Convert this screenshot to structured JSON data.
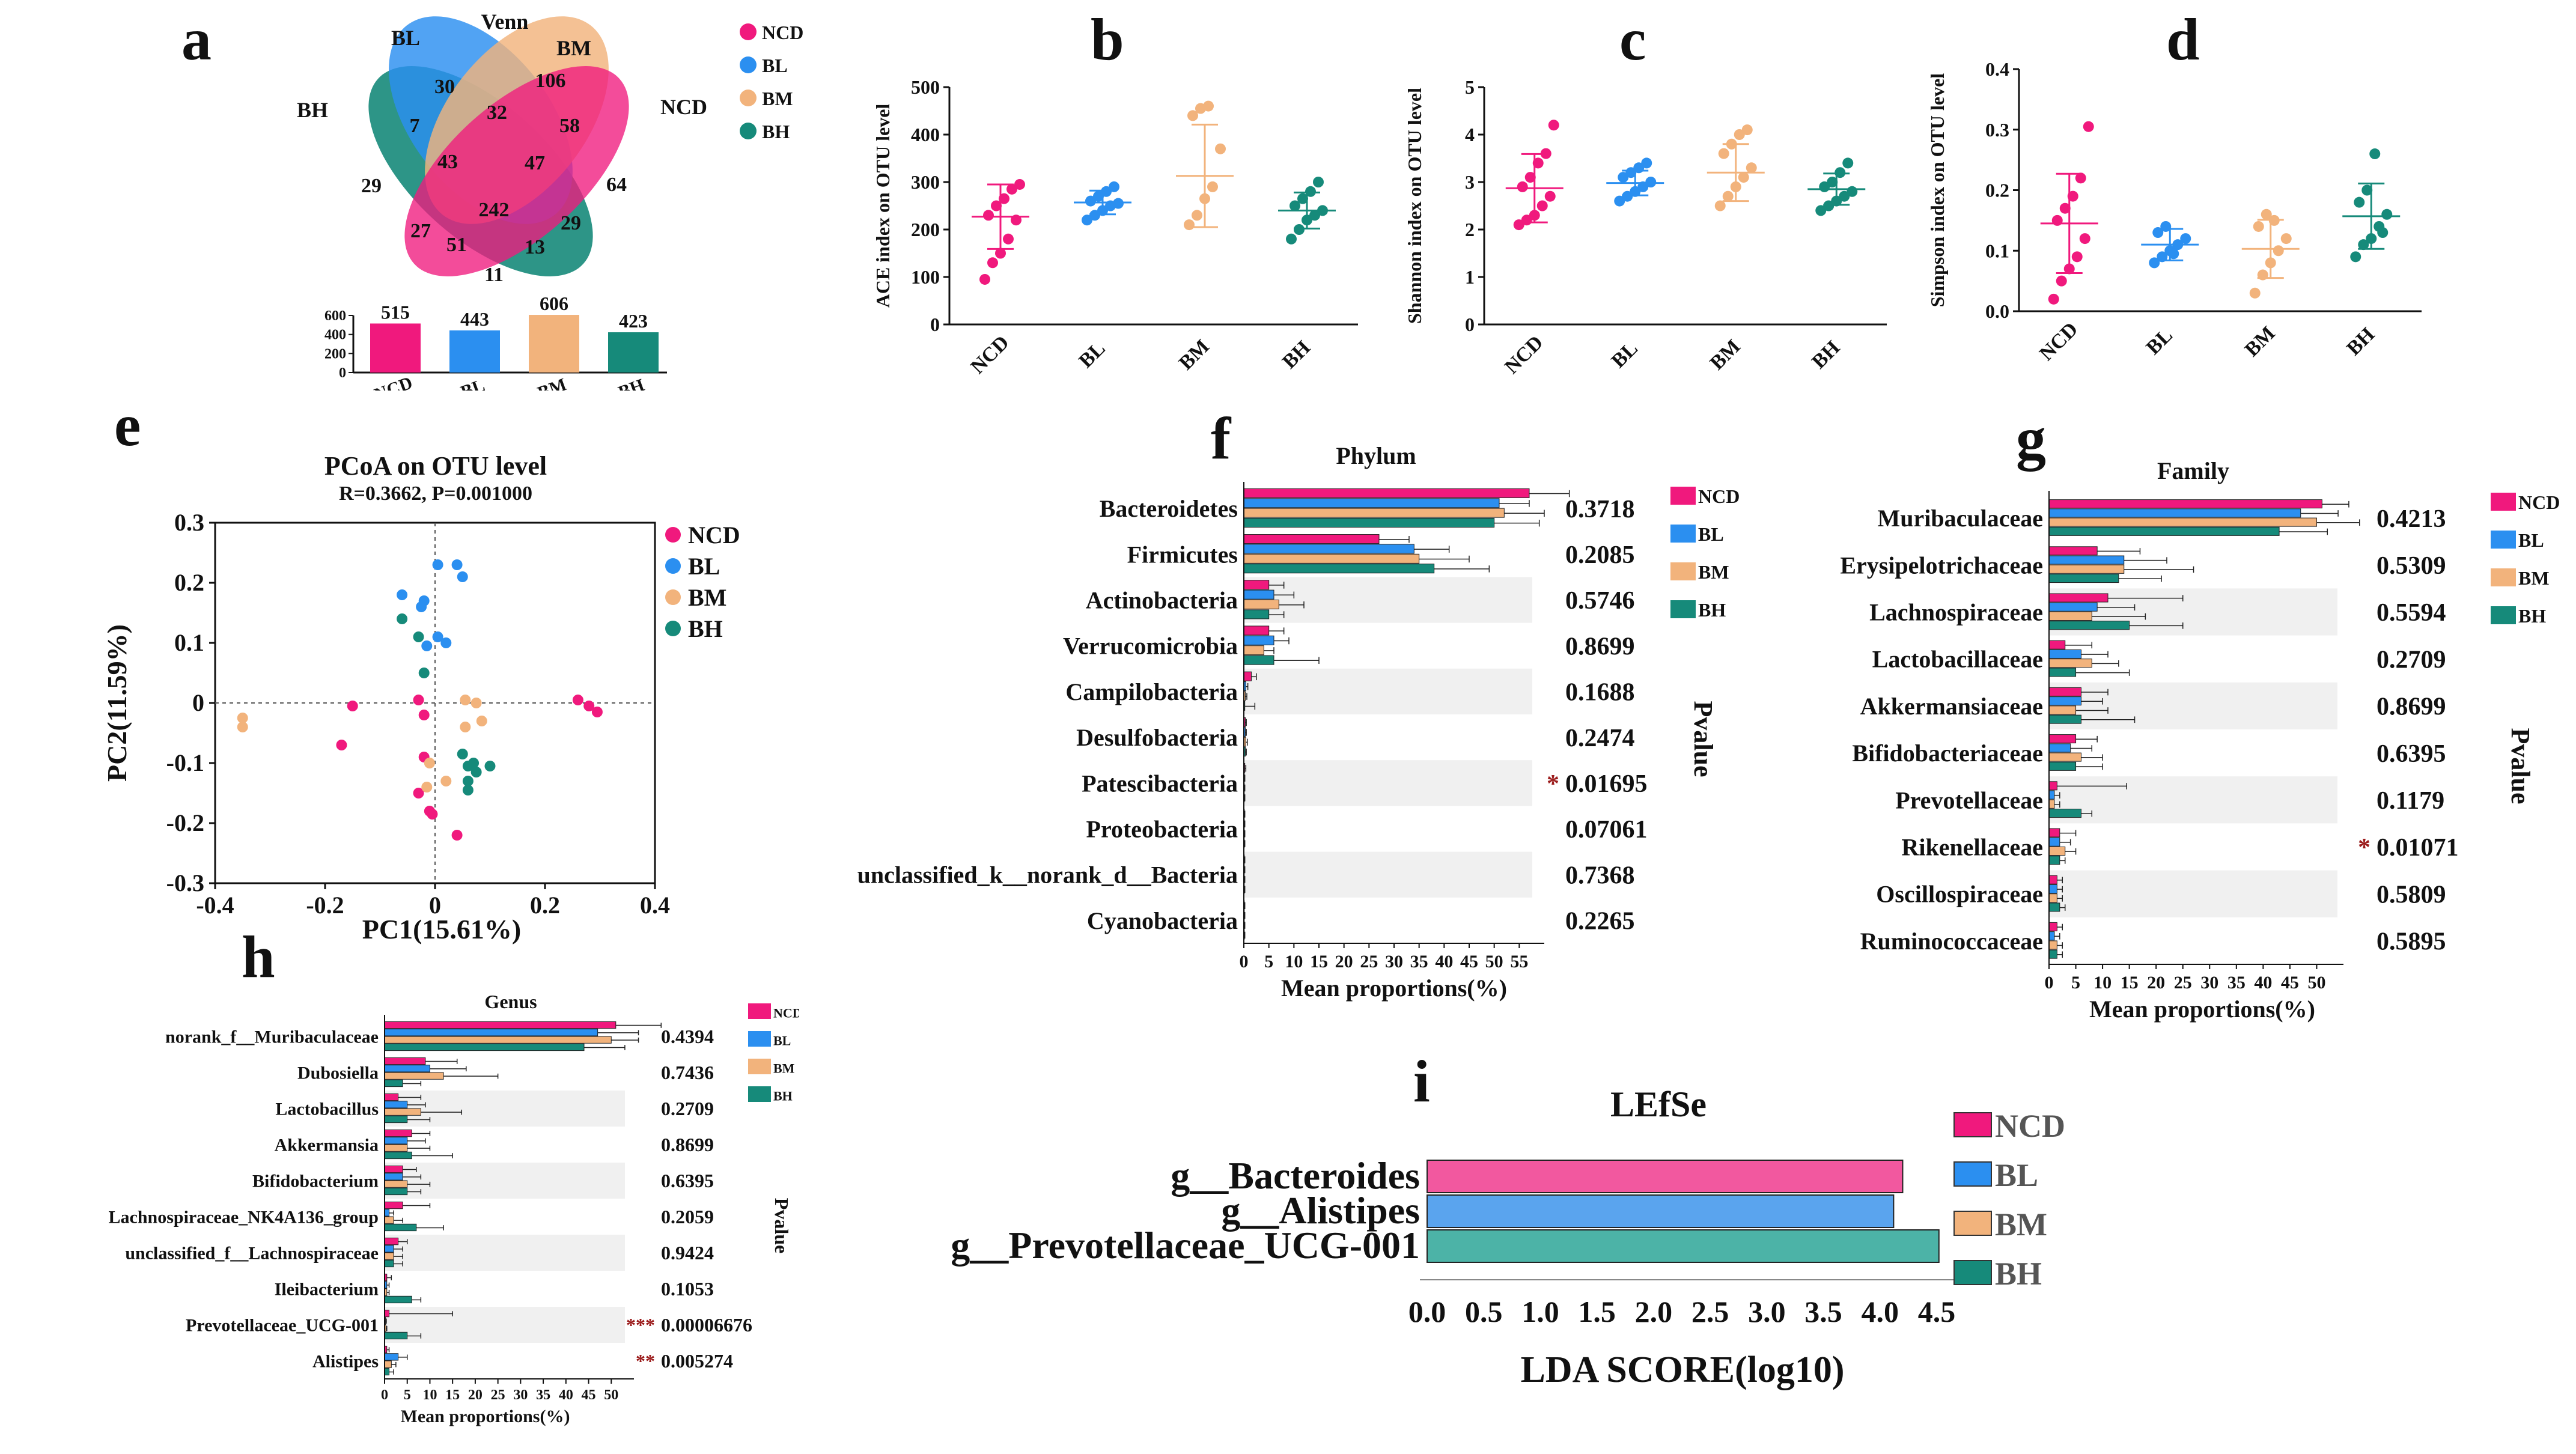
{
  "colors": {
    "NCD": "#f0197d",
    "BL": "#2b8ff0",
    "BM": "#f2b37c",
    "BH": "#168a7a",
    "bandBg": "#f0f0f0",
    "sig": "#9b1b1b"
  },
  "groups": [
    "NCD",
    "BL",
    "BM",
    "BH"
  ],
  "panel_a": {
    "label": "a",
    "title": "Venn",
    "set_labels": {
      "BL": "BL",
      "BM": "BM",
      "BH": "BH",
      "NCD": "NCD"
    },
    "legend": [
      "NCD",
      "BL",
      "BM",
      "BH"
    ],
    "counts": {
      "bl_only": "30",
      "bm_only": "106",
      "bh_only": "29",
      "ncd_only": "64",
      "bl_bm": "32",
      "bh_bl": "7",
      "bm_ncd": "58",
      "bh_bl_bm": "43",
      "bl_bm_ncd": "47",
      "bh_bm": "27",
      "all": "242",
      "bh_bl_ncd": "29",
      "bh_bm_ncd": "51",
      "bh_ncd_a": "13",
      "bh_ncd_b": "11"
    },
    "bar_chart": {
      "type": "bar",
      "categories": [
        "NCD",
        "BL",
        "BM",
        "BH"
      ],
      "values": [
        515,
        443,
        606,
        423
      ],
      "value_labels": [
        "515",
        "443",
        "606",
        "423"
      ],
      "yticks": [
        "600",
        "400",
        "200",
        "0"
      ],
      "ylim": [
        0,
        600
      ]
    }
  },
  "chart_data": [
    {
      "id": "b",
      "label": "b",
      "type": "scatter",
      "ylabel": "ACE index on OTU level",
      "ylim": [
        0,
        500
      ],
      "yticks": [
        "0",
        "100",
        "200",
        "300",
        "400",
        "500"
      ],
      "categories": [
        "NCD",
        "BL",
        "BM",
        "BH"
      ],
      "points": [
        [
          95,
          130,
          150,
          180,
          220,
          230,
          250,
          265,
          285,
          295
        ],
        [
          220,
          230,
          240,
          250,
          255,
          260,
          270,
          280,
          290
        ],
        [
          210,
          230,
          265,
          290,
          370,
          440,
          455,
          460
        ],
        [
          180,
          200,
          220,
          230,
          240,
          250,
          265,
          280,
          300
        ]
      ],
      "mean": [
        227,
        257,
        313,
        240
      ],
      "sd": [
        68,
        25,
        108,
        38
      ]
    },
    {
      "id": "c",
      "label": "c",
      "type": "scatter",
      "ylabel": "Shannon index on OTU level",
      "ylim": [
        0,
        5
      ],
      "yticks": [
        "0",
        "1",
        "2",
        "3",
        "4",
        "5"
      ],
      "categories": [
        "NCD",
        "BL",
        "BM",
        "BH"
      ],
      "points": [
        [
          2.1,
          2.2,
          2.3,
          2.5,
          2.7,
          2.9,
          3.1,
          3.4,
          3.6,
          4.2
        ],
        [
          2.6,
          2.7,
          2.8,
          2.9,
          3.0,
          3.1,
          3.2,
          3.3,
          3.4
        ],
        [
          2.5,
          2.7,
          2.9,
          3.1,
          3.3,
          3.6,
          3.8,
          4.0,
          4.1
        ],
        [
          2.4,
          2.5,
          2.6,
          2.7,
          2.8,
          2.9,
          3.0,
          3.2,
          3.4
        ]
      ],
      "mean": [
        2.87,
        2.98,
        3.2,
        2.85
      ],
      "sd": [
        0.72,
        0.26,
        0.6,
        0.33
      ]
    },
    {
      "id": "d",
      "label": "d",
      "type": "scatter",
      "ylabel": "Simpson index on OTU level",
      "ylim": [
        0,
        0.4
      ],
      "yticks": [
        "0.0",
        "0.1",
        "0.2",
        "0.3",
        "0.4"
      ],
      "categories": [
        "NCD",
        "BL",
        "BM",
        "BH"
      ],
      "points": [
        [
          0.02,
          0.05,
          0.07,
          0.09,
          0.12,
          0.15,
          0.17,
          0.19,
          0.22,
          0.305
        ],
        [
          0.08,
          0.09,
          0.1,
          0.11,
          0.12,
          0.13,
          0.14,
          0.095
        ],
        [
          0.03,
          0.06,
          0.08,
          0.1,
          0.12,
          0.14,
          0.16,
          0.15
        ],
        [
          0.09,
          0.11,
          0.12,
          0.14,
          0.16,
          0.18,
          0.2,
          0.26,
          0.13
        ]
      ],
      "mean": [
        0.145,
        0.11,
        0.103,
        0.157
      ],
      "sd": [
        0.082,
        0.026,
        0.048,
        0.054
      ]
    },
    {
      "id": "e",
      "label": "e",
      "type": "scatter",
      "title": "PCoA on OTU level",
      "subtitle": "R=0.3662, P=0.001000",
      "xlabel": "PC1(15.61%)",
      "ylabel": "PC2(11.59%)",
      "xlim": [
        -0.4,
        0.4
      ],
      "ylim": [
        -0.3,
        0.3
      ],
      "xticks": [
        "-0.4",
        "-0.2",
        "0",
        "0.2",
        "0.4"
      ],
      "yticks": [
        "-0.3",
        "-0.2",
        "-0.1",
        "0",
        "0.1",
        "0.2",
        "0.3"
      ],
      "series": [
        {
          "name": "NCD",
          "points": [
            [
              -0.17,
              -0.07
            ],
            [
              -0.15,
              -0.005
            ],
            [
              -0.03,
              0.005
            ],
            [
              -0.02,
              -0.02
            ],
            [
              0.26,
              0.005
            ],
            [
              0.28,
              -0.005
            ],
            [
              0.295,
              -0.015
            ],
            [
              -0.02,
              -0.09
            ],
            [
              -0.03,
              -0.15
            ],
            [
              -0.01,
              -0.18
            ],
            [
              0.04,
              -0.22
            ],
            [
              -0.005,
              -0.185
            ]
          ]
        },
        {
          "name": "BL",
          "points": [
            [
              0.005,
              0.23
            ],
            [
              0.04,
              0.23
            ],
            [
              0.05,
              0.21
            ],
            [
              -0.06,
              0.18
            ],
            [
              -0.02,
              0.17
            ],
            [
              -0.025,
              0.16
            ],
            [
              0.005,
              0.11
            ],
            [
              0.02,
              0.1
            ],
            [
              -0.015,
              0.095
            ]
          ]
        },
        {
          "name": "BM",
          "points": [
            [
              -0.35,
              -0.025
            ],
            [
              -0.35,
              -0.04
            ],
            [
              0.055,
              0.005
            ],
            [
              0.075,
              0.0
            ],
            [
              0.085,
              -0.03
            ],
            [
              -0.01,
              -0.1
            ],
            [
              -0.015,
              -0.14
            ],
            [
              0.02,
              -0.13
            ],
            [
              0.055,
              -0.04
            ]
          ]
        },
        {
          "name": "BH",
          "points": [
            [
              -0.06,
              0.14
            ],
            [
              -0.03,
              0.11
            ],
            [
              -0.02,
              0.05
            ],
            [
              0.06,
              -0.105
            ],
            [
              0.07,
              -0.1
            ],
            [
              0.1,
              -0.105
            ],
            [
              0.06,
              -0.13
            ],
            [
              0.075,
              -0.115
            ],
            [
              0.06,
              -0.145
            ],
            [
              0.05,
              -0.085
            ]
          ]
        }
      ]
    },
    {
      "id": "f",
      "label": "f",
      "type": "bar",
      "orientation": "horizontal",
      "title": "Phylum",
      "xlabel": "Mean proportions(%)",
      "pvalue_label": "Pvalue",
      "xlim": [
        0,
        60
      ],
      "xticks": [
        "0",
        "5",
        "10",
        "15",
        "20",
        "25",
        "30",
        "35",
        "40",
        "45",
        "50",
        "55"
      ],
      "categories": [
        "Bacteroidetes",
        "Firmicutes",
        "Actinobacteria",
        "Verrucomicrobia",
        "Campilobacteria",
        "Desulfobacteria",
        "Patescibacteria",
        "Proteobacteria",
        "unclassified_k__norank_d__Bacteria",
        "Cyanobacteria"
      ],
      "pvalues": [
        "0.3718",
        "0.2085",
        "0.5746",
        "0.8699",
        "0.1688",
        "0.2474",
        "0.01695",
        "0.07061",
        "0.7368",
        "0.2265"
      ],
      "sig": [
        "",
        "",
        "",
        "",
        "",
        "",
        "*",
        "",
        "",
        ""
      ],
      "series": [
        {
          "name": "NCD",
          "values": [
            57,
            27,
            5,
            5,
            1.5,
            0.3,
            0.2,
            0.1,
            0.1,
            0.1
          ],
          "err": [
            8,
            6,
            3,
            3,
            1,
            0.2,
            0.2,
            0.1,
            0.1,
            0.1
          ]
        },
        {
          "name": "BL",
          "values": [
            51,
            34,
            6,
            6,
            0.4,
            0.3,
            0.1,
            0.1,
            0.1,
            0.1
          ],
          "err": [
            6,
            7,
            4,
            3,
            0.4,
            0.2,
            0.1,
            0.1,
            0.1,
            0.1
          ]
        },
        {
          "name": "BM",
          "values": [
            52,
            35,
            7,
            4,
            0.3,
            0.4,
            0.1,
            0.1,
            0.1,
            0.1
          ],
          "err": [
            8,
            10,
            5,
            2,
            0.3,
            0.3,
            0.1,
            0.1,
            0.1,
            0.1
          ]
        },
        {
          "name": "BH",
          "values": [
            50,
            38,
            5,
            6,
            0.2,
            0.3,
            0.1,
            0.1,
            0.1,
            0.1
          ],
          "err": [
            9,
            11,
            3,
            9,
            2,
            0.2,
            0.1,
            0.1,
            0.1,
            0.1
          ]
        }
      ]
    },
    {
      "id": "g",
      "label": "g",
      "type": "bar",
      "orientation": "horizontal",
      "title": "Family",
      "xlabel": "Mean proportions(%)",
      "pvalue_label": "Pvalue",
      "xlim": [
        0,
        55
      ],
      "xticks": [
        "0",
        "5",
        "10",
        "15",
        "20",
        "25",
        "30",
        "35",
        "40",
        "45",
        "50"
      ],
      "categories": [
        "Muribaculaceae",
        "Erysipelotrichaceae",
        "Lachnospiraceae",
        "Lactobacillaceae",
        "Akkermansiaceae",
        "Bifidobacteriaceae",
        "Prevotellaceae",
        "Rikenellaceae",
        "Oscillospiraceae",
        "Ruminococcaceae"
      ],
      "pvalues": [
        "0.4213",
        "0.5309",
        "0.5594",
        "0.2709",
        "0.8699",
        "0.6395",
        "0.1179",
        "0.01071",
        "0.5809",
        "0.5895"
      ],
      "sig": [
        "",
        "",
        "",
        "",
        "",
        "",
        "",
        "*",
        "",
        ""
      ],
      "series": [
        {
          "name": "NCD",
          "values": [
            51,
            9,
            11,
            3,
            6,
            5,
            1.5,
            2,
            1.5,
            1.5
          ],
          "err": [
            5,
            8,
            14,
            5,
            5,
            4,
            13,
            3,
            1,
            1
          ]
        },
        {
          "name": "BL",
          "values": [
            47,
            14,
            9,
            6,
            6,
            4,
            1,
            2,
            1.5,
            1
          ],
          "err": [
            7,
            8,
            7,
            5,
            4,
            4,
            1,
            2,
            1,
            1
          ]
        },
        {
          "name": "BM",
          "values": [
            50,
            14,
            8,
            8,
            5,
            6,
            1,
            3,
            1.5,
            1.5
          ],
          "err": [
            8,
            13,
            10,
            5,
            6,
            4,
            1,
            2,
            1,
            1
          ]
        },
        {
          "name": "BH",
          "values": [
            43,
            13,
            15,
            5,
            6,
            5,
            6,
            2,
            2,
            1.5
          ],
          "err": [
            9,
            8,
            10,
            10,
            10,
            5,
            2,
            1,
            1,
            1
          ]
        }
      ]
    },
    {
      "id": "h",
      "label": "h",
      "type": "bar",
      "orientation": "horizontal",
      "title": "Genus",
      "xlabel": "Mean proportions(%)",
      "pvalue_label": "Pvalue",
      "xlim": [
        0,
        55
      ],
      "xticks": [
        "0",
        "5",
        "10",
        "15",
        "20",
        "25",
        "30",
        "35",
        "40",
        "45",
        "50"
      ],
      "categories": [
        "norank_f__Muribaculaceae",
        "Dubosiella",
        "Lactobacillus",
        "Akkermansia",
        "Bifidobacterium",
        "Lachnospiraceae_NK4A136_group",
        "unclassified_f__Lachnospiraceae",
        "Ileibacterium",
        "Prevotellaceae_UCG-001",
        "Alistipes"
      ],
      "pvalues": [
        "0.4394",
        "0.7436",
        "0.2709",
        "0.8699",
        "0.6395",
        "0.2059",
        "0.9424",
        "0.1053",
        "0.00006676",
        "0.005274"
      ],
      "sig": [
        "",
        "",
        "",
        "",
        "",
        "",
        "",
        "",
        "***",
        "**"
      ],
      "series": [
        {
          "name": "NCD",
          "values": [
            51,
            9,
            3,
            6,
            4,
            4,
            3,
            0.5,
            1,
            0.5
          ],
          "err": [
            10,
            7,
            5,
            4,
            3,
            6,
            2,
            1,
            14,
            0.5
          ]
        },
        {
          "name": "BL",
          "values": [
            47,
            10,
            5,
            5,
            4,
            1,
            2,
            0.5,
            0.2,
            3
          ],
          "err": [
            9,
            8,
            4,
            4,
            4,
            1,
            2,
            0.5,
            0.2,
            2
          ]
        },
        {
          "name": "BM",
          "values": [
            50,
            13,
            8,
            5,
            5,
            2,
            2,
            0.5,
            0.3,
            1.5
          ],
          "err": [
            6,
            12,
            9,
            5,
            5,
            2,
            2,
            0.5,
            0.2,
            1
          ]
        },
        {
          "name": "BH",
          "values": [
            44,
            4,
            5,
            6,
            5,
            7,
            2,
            6,
            5,
            1
          ],
          "err": [
            9,
            4,
            5,
            9,
            3,
            6,
            2,
            2,
            3,
            1
          ]
        }
      ]
    },
    {
      "id": "i",
      "label": "i",
      "type": "bar",
      "orientation": "horizontal",
      "title": "LEfSe",
      "xlabel": "LDA SCORE(log10)",
      "xlim": [
        0,
        4.5
      ],
      "xticks": [
        "0.0",
        "0.5",
        "1.0",
        "1.5",
        "2.0",
        "2.5",
        "3.0",
        "3.5",
        "4.0",
        "4.5"
      ],
      "categories": [
        "g__Bacteroides",
        "g__Alistipes",
        "g__Prevotellaceae_UCG-001"
      ],
      "values": [
        4.2,
        4.12,
        4.52
      ],
      "groups": [
        "NCD",
        "BL",
        "BH"
      ],
      "legend": [
        "NCD",
        "BL",
        "BM",
        "BH"
      ],
      "bar_colors": {
        "NCD": "#f2589f",
        "BL": "#5aa4ee",
        "BH": "#4cb3a7"
      }
    }
  ]
}
